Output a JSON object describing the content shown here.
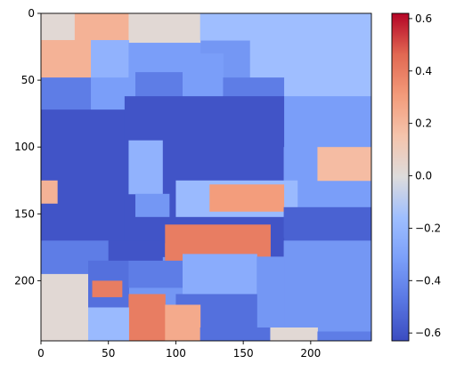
{
  "chart_data": {
    "type": "heatmap",
    "title": "",
    "xlabel": "",
    "ylabel": "",
    "x_range": [
      0,
      245
    ],
    "y_range": [
      0,
      245
    ],
    "x_ticks": [
      0,
      50,
      100,
      150,
      200
    ],
    "y_ticks": [
      0,
      50,
      100,
      150,
      200
    ],
    "colormap": "coolwarm",
    "colorbar": {
      "range": [
        -0.63,
        0.62
      ],
      "ticks": [
        -0.6,
        -0.4,
        -0.2,
        0.0,
        0.2,
        0.4,
        0.6
      ],
      "tick_labels": [
        "−0.6",
        "−0.4",
        "−0.2",
        "0.0",
        "0.2",
        "0.4",
        "0.6"
      ]
    },
    "regions": [
      {
        "x": [
          0,
          245
        ],
        "y": [
          0,
          245
        ],
        "value": -0.35
      },
      {
        "x": [
          0,
          25
        ],
        "y": [
          0,
          20
        ],
        "value": 0.02
      },
      {
        "x": [
          0,
          37
        ],
        "y": [
          20,
          48
        ],
        "value": 0.22
      },
      {
        "x": [
          25,
          65
        ],
        "y": [
          0,
          20
        ],
        "value": 0.22
      },
      {
        "x": [
          65,
          118
        ],
        "y": [
          0,
          22
        ],
        "value": 0.02
      },
      {
        "x": [
          118,
          155
        ],
        "y": [
          0,
          20
        ],
        "value": -0.16
      },
      {
        "x": [
          155,
          245
        ],
        "y": [
          0,
          62
        ],
        "value": -0.16
      },
      {
        "x": [
          37,
          65
        ],
        "y": [
          20,
          48
        ],
        "value": -0.22
      },
      {
        "x": [
          65,
          118
        ],
        "y": [
          22,
          48
        ],
        "value": -0.32
      },
      {
        "x": [
          0,
          37
        ],
        "y": [
          48,
          72
        ],
        "value": -0.45
      },
      {
        "x": [
          37,
          70
        ],
        "y": [
          48,
          72
        ],
        "value": -0.32
      },
      {
        "x": [
          70,
          105
        ],
        "y": [
          44,
          62
        ],
        "value": -0.45
      },
      {
        "x": [
          105,
          135
        ],
        "y": [
          30,
          62
        ],
        "value": -0.32
      },
      {
        "x": [
          135,
          180
        ],
        "y": [
          48,
          66
        ],
        "value": -0.45
      },
      {
        "x": [
          180,
          245
        ],
        "y": [
          62,
          100
        ],
        "value": -0.32
      },
      {
        "x": [
          0,
          62
        ],
        "y": [
          72,
          170
        ],
        "value": -0.6
      },
      {
        "x": [
          62,
          180
        ],
        "y": [
          62,
          170
        ],
        "value": -0.6
      },
      {
        "x": [
          180,
          245
        ],
        "y": [
          100,
          145
        ],
        "value": -0.32
      },
      {
        "x": [
          205,
          245
        ],
        "y": [
          100,
          125
        ],
        "value": 0.18
      },
      {
        "x": [
          0,
          12
        ],
        "y": [
          125,
          142
        ],
        "value": 0.22
      },
      {
        "x": [
          65,
          90
        ],
        "y": [
          95,
          135
        ],
        "value": -0.22
      },
      {
        "x": [
          70,
          95
        ],
        "y": [
          135,
          152
        ],
        "value": -0.35
      },
      {
        "x": [
          100,
          190
        ],
        "y": [
          125,
          152
        ],
        "value": -0.18
      },
      {
        "x": [
          125,
          180
        ],
        "y": [
          128,
          148
        ],
        "value": 0.3
      },
      {
        "x": [
          180,
          245
        ],
        "y": [
          145,
          170
        ],
        "value": -0.55
      },
      {
        "x": [
          0,
          50
        ],
        "y": [
          170,
          195
        ],
        "value": -0.45
      },
      {
        "x": [
          50,
          90
        ],
        "y": [
          170,
          185
        ],
        "value": -0.6
      },
      {
        "x": [
          90,
          180
        ],
        "y": [
          168,
          182
        ],
        "value": -0.6
      },
      {
        "x": [
          92,
          170
        ],
        "y": [
          158,
          182
        ],
        "value": 0.4
      },
      {
        "x": [
          92,
          140
        ],
        "y": [
          172,
          190
        ],
        "value": 0.4
      },
      {
        "x": [
          180,
          245
        ],
        "y": [
          170,
          245
        ],
        "value": -0.35
      },
      {
        "x": [
          0,
          35
        ],
        "y": [
          195,
          245
        ],
        "value": 0.02
      },
      {
        "x": [
          35,
          65
        ],
        "y": [
          185,
          220
        ],
        "value": -0.5
      },
      {
        "x": [
          38,
          60
        ],
        "y": [
          200,
          212
        ],
        "value": 0.4
      },
      {
        "x": [
          65,
          105
        ],
        "y": [
          185,
          205
        ],
        "value": -0.45
      },
      {
        "x": [
          105,
          160
        ],
        "y": [
          180,
          210
        ],
        "value": -0.25
      },
      {
        "x": [
          160,
          180
        ],
        "y": [
          182,
          240
        ],
        "value": -0.35
      },
      {
        "x": [
          100,
          160
        ],
        "y": [
          210,
          235
        ],
        "value": -0.5
      },
      {
        "x": [
          65,
          92
        ],
        "y": [
          210,
          245
        ],
        "value": 0.4
      },
      {
        "x": [
          92,
          118
        ],
        "y": [
          218,
          245
        ],
        "value": 0.25
      },
      {
        "x": [
          35,
          65
        ],
        "y": [
          220,
          245
        ],
        "value": -0.18
      },
      {
        "x": [
          118,
          170
        ],
        "y": [
          235,
          245
        ],
        "value": -0.5
      },
      {
        "x": [
          170,
          205
        ],
        "y": [
          235,
          245
        ],
        "value": 0.02
      },
      {
        "x": [
          205,
          245
        ],
        "y": [
          238,
          245
        ],
        "value": -0.45
      }
    ]
  }
}
